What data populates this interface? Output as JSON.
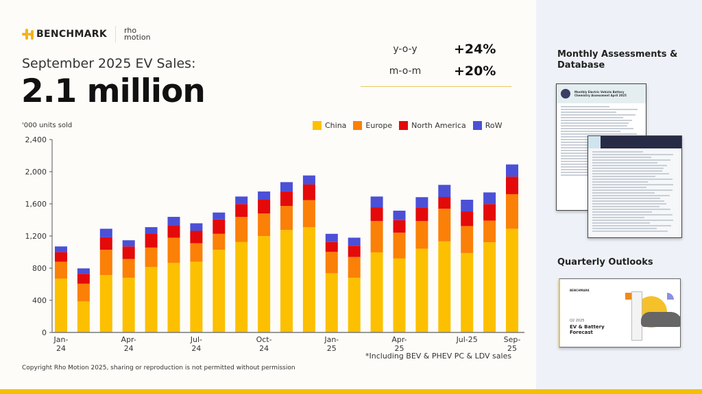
{
  "header": {
    "brand": "BENCHMARK",
    "partner": "rho motion",
    "subtitle": "September 2025 EV Sales:",
    "headline": "2.1 million"
  },
  "stats": [
    {
      "label": "y-o-y",
      "value": "+24%"
    },
    {
      "label": "m-o-m",
      "value": "+20%"
    }
  ],
  "side": {
    "monthly_title": "Monthly Assessments & Database",
    "monthly_doc_title": "Monthly Electric Vehicle Battery Chemistry Assessment April 2025",
    "quarterly_title": "Quarterly Outlooks",
    "quarterly_doc_period": "Q2 2025",
    "quarterly_doc_title": "EV & Battery Forecast",
    "quarterly_doc_brand": "BENCHMARK"
  },
  "footer": {
    "note": "*Including BEV & PHEV PC & LDV sales",
    "copyright": "Copyright Rho Motion 2025, sharing or reproduction is not permitted without permission"
  },
  "chart_data": {
    "type": "bar",
    "stacked": true,
    "ylabel": "'000 units sold",
    "ylim": [
      0,
      2400
    ],
    "yticks": [
      0,
      400,
      800,
      1200,
      1600,
      2000,
      2400
    ],
    "ytick_labels": [
      "0",
      "400",
      "800",
      "1,200",
      "1,600",
      "2,000",
      "2,400"
    ],
    "grid": false,
    "legend_position": "top-right",
    "categories": [
      "Jan-24",
      "Feb-24",
      "Mar-24",
      "Apr-24",
      "May-24",
      "Jun-24",
      "Jul-24",
      "Aug-24",
      "Sep-24",
      "Oct-24",
      "Nov-24",
      "Dec-24",
      "Jan-25",
      "Feb-25",
      "Mar-25",
      "Apr-25",
      "May-25",
      "Jun-25",
      "Jul-25",
      "Aug-25",
      "Sep-25"
    ],
    "xtick_labels": [
      [
        "Jan-",
        "24"
      ],
      [
        "",
        ""
      ],
      [
        "",
        ""
      ],
      [
        "Apr-",
        "24"
      ],
      [
        "",
        ""
      ],
      [
        "",
        ""
      ],
      [
        "Jul-",
        "24"
      ],
      [
        "",
        ""
      ],
      [
        "",
        ""
      ],
      [
        "Oct-",
        "24"
      ],
      [
        "",
        ""
      ],
      [
        "",
        ""
      ],
      [
        "Jan-",
        "25"
      ],
      [
        "",
        ""
      ],
      [
        "",
        ""
      ],
      [
        "Apr-",
        "25"
      ],
      [
        "",
        ""
      ],
      [
        "",
        ""
      ],
      [
        "Jul-25",
        ""
      ],
      [
        "",
        ""
      ],
      [
        "Sep-",
        "25"
      ]
    ],
    "series": [
      {
        "name": "China",
        "color": "#fcc000",
        "values": [
          669,
          387,
          715,
          680,
          814,
          865,
          880,
          1028,
          1125,
          1199,
          1275,
          1310,
          737,
          680,
          996,
          920,
          1042,
          1133,
          988,
          1122,
          1290
        ]
      },
      {
        "name": "Europe",
        "color": "#fb8007",
        "values": [
          211,
          219,
          313,
          234,
          242,
          314,
          230,
          199,
          313,
          281,
          299,
          336,
          265,
          259,
          390,
          321,
          344,
          407,
          336,
          270,
          430
        ]
      },
      {
        "name": "North America",
        "color": "#e40a0a",
        "values": [
          119,
          123,
          156,
          156,
          177,
          156,
          154,
          179,
          159,
          171,
          180,
          196,
          123,
          140,
          171,
          157,
          163,
          145,
          182,
          205,
          219
        ]
      },
      {
        "name": "RoW",
        "color": "#4b50d6",
        "values": [
          71,
          68,
          106,
          77,
          77,
          103,
          94,
          86,
          94,
          103,
          116,
          111,
          102,
          100,
          134,
          117,
          134,
          151,
          145,
          145,
          151
        ]
      }
    ]
  }
}
